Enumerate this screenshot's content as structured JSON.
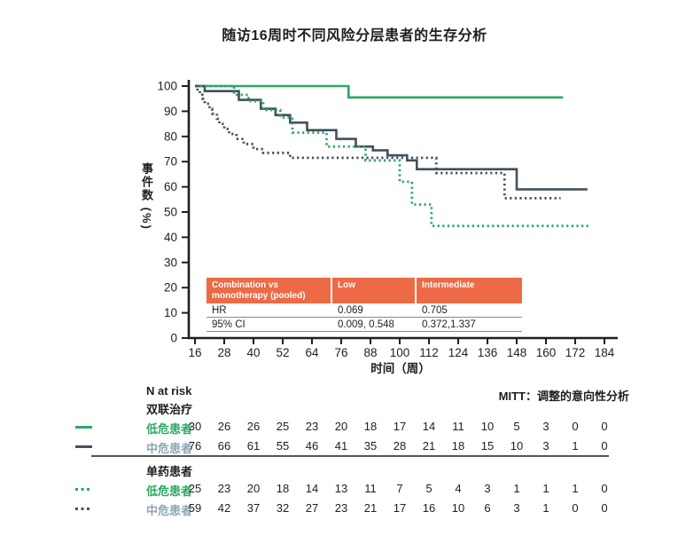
{
  "title": "随访16周时不同风险分层患者的生存分析",
  "colors": {
    "green": "#2aa861",
    "navy": "#42505f",
    "mid_label_blue": "#8ba6b4",
    "table_header_orange": "#ec6a45",
    "axis": "#1f1f1f"
  },
  "chart_data": {
    "type": "line",
    "subtype": "kaplan-meier-step",
    "title": "随访16周时不同风险分层患者的生存分析",
    "xlabel": "时间（周）",
    "ylabel": "事件数 (%)",
    "xlim": [
      16,
      184
    ],
    "ylim": [
      0,
      100
    ],
    "x_ticks": [
      16,
      28,
      40,
      52,
      64,
      76,
      88,
      100,
      112,
      124,
      136,
      148,
      160,
      172,
      184
    ],
    "y_ticks": [
      0,
      10,
      20,
      30,
      40,
      50,
      60,
      70,
      80,
      90,
      100
    ],
    "grid": false,
    "legend_position": "below (N at risk table)",
    "series": [
      {
        "name": "双联治疗 低危患者",
        "style": "solid",
        "color": "#2aa861",
        "points": [
          [
            16,
            100
          ],
          [
            79,
            95.5
          ],
          [
            167,
            95.5
          ]
        ]
      },
      {
        "name": "双联治疗 中危患者",
        "style": "solid",
        "color": "#42505f",
        "points": [
          [
            16,
            100
          ],
          [
            20,
            98
          ],
          [
            34,
            94.5
          ],
          [
            43,
            91
          ],
          [
            49,
            88.5
          ],
          [
            55,
            85.5
          ],
          [
            62,
            82.5
          ],
          [
            74,
            79
          ],
          [
            82,
            76
          ],
          [
            89,
            74.5
          ],
          [
            95,
            72.5
          ],
          [
            103,
            70.5
          ],
          [
            107,
            67
          ],
          [
            148,
            59
          ],
          [
            177,
            59
          ]
        ]
      },
      {
        "name": "单药患者 低危患者",
        "style": "dotted",
        "color": "#2aa861",
        "points": [
          [
            16,
            100
          ],
          [
            32,
            96.5
          ],
          [
            38,
            94
          ],
          [
            44,
            90.5
          ],
          [
            51,
            87.5
          ],
          [
            56,
            81.5
          ],
          [
            70,
            76
          ],
          [
            86,
            70.5
          ],
          [
            100,
            62
          ],
          [
            105,
            53
          ],
          [
            113,
            44.5
          ],
          [
            178,
            44.5
          ]
        ]
      },
      {
        "name": "单药患者 中危患者",
        "style": "dotted",
        "color": "#42505f",
        "points": [
          [
            16,
            100
          ],
          [
            17,
            98
          ],
          [
            18,
            96.5
          ],
          [
            19,
            95
          ],
          [
            20,
            93
          ],
          [
            22,
            91
          ],
          [
            23,
            89
          ],
          [
            25,
            87
          ],
          [
            26,
            85
          ],
          [
            28,
            83
          ],
          [
            30,
            81
          ],
          [
            33,
            79
          ],
          [
            36,
            77
          ],
          [
            40,
            75
          ],
          [
            44,
            73.5
          ],
          [
            55,
            71.5
          ],
          [
            115,
            65.5
          ],
          [
            143,
            55.5
          ],
          [
            166,
            55.5
          ]
        ]
      }
    ]
  },
  "inner_table": {
    "header": [
      "Combination vs monotherapy (pooled)",
      "Low",
      "Intermediate"
    ],
    "rows": [
      [
        "HR",
        "0.069",
        "0.705"
      ],
      [
        "95% CI",
        "0.009, 0.548",
        "0.372,1.337"
      ]
    ]
  },
  "risk_table": {
    "heading": "N at risk",
    "note": "MITT：调整的意向性分析",
    "groups": [
      {
        "label": "双联治疗",
        "rows": [
          {
            "label": "低危患者",
            "marker": "solid",
            "color": "#2aa861",
            "label_color": "#2aa861",
            "counts": [
              30,
              26,
              26,
              25,
              23,
              20,
              18,
              17,
              14,
              11,
              10,
              5,
              3,
              0,
              0
            ]
          },
          {
            "label": "中危患者",
            "marker": "solid",
            "color": "#42505f",
            "label_color": "#8ba6b4",
            "counts": [
              76,
              66,
              61,
              55,
              46,
              41,
              35,
              28,
              21,
              18,
              15,
              10,
              3,
              1,
              0
            ]
          }
        ]
      },
      {
        "label": "单药患者",
        "rows": [
          {
            "label": "低危患者",
            "marker": "dotted",
            "color": "#2aa861",
            "label_color": "#2aa861",
            "counts": [
              25,
              23,
              20,
              18,
              14,
              13,
              11,
              7,
              5,
              4,
              3,
              1,
              1,
              1,
              0
            ]
          },
          {
            "label": "中危患者",
            "marker": "dotted",
            "color": "#42505f",
            "label_color": "#8ba6b4",
            "counts": [
              59,
              42,
              37,
              32,
              27,
              23,
              21,
              17,
              16,
              10,
              6,
              3,
              1,
              0,
              0
            ]
          }
        ]
      }
    ]
  }
}
